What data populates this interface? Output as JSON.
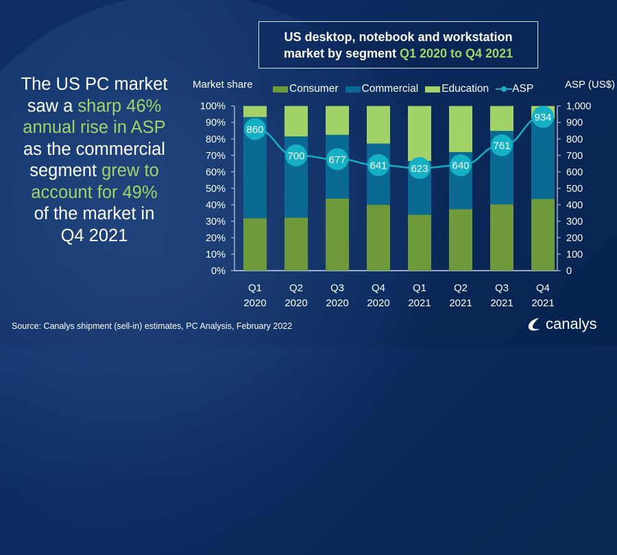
{
  "headline": {
    "parts": [
      {
        "text": "The US PC market saw a ",
        "highlight": false
      },
      {
        "text": "sharp 46% annual rise in ASP",
        "highlight": true
      },
      {
        "text": " as the commercial segment ",
        "highlight": false
      },
      {
        "text": "grew to account for 49%",
        "highlight": true
      },
      {
        "text": " of the market in Q4 2021",
        "highlight": false
      }
    ],
    "lines": [
      [
        {
          "t": "The US PC market",
          "h": false
        }
      ],
      [
        {
          "t": "saw a ",
          "h": false
        },
        {
          "t": "sharp 46%",
          "h": true
        }
      ],
      [
        {
          "t": "annual rise in ASP",
          "h": true
        }
      ],
      [
        {
          "t": "as the commercial",
          "h": false
        }
      ],
      [
        {
          "t": "segment ",
          "h": false
        },
        {
          "t": "grew to",
          "h": true
        }
      ],
      [
        {
          "t": "account for 49%",
          "h": true
        }
      ],
      [
        {
          "t": "of the market in",
          "h": false
        }
      ],
      [
        {
          "t": "Q4 2021",
          "h": false
        }
      ]
    ]
  },
  "title": {
    "line1": "US desktop, notebook and workstation",
    "line2_plain": "market by segment ",
    "line2_highlight": "Q1 2020 to Q4 2021"
  },
  "colors": {
    "highlight": "#a3d368",
    "consumer": "#6e9a3c",
    "commercial": "#0a6a93",
    "education": "#a3d368",
    "asp": "#16b0c4",
    "axis": "#c9d6e6"
  },
  "chart_data": {
    "type": "bar",
    "stacked": true,
    "title": "US desktop, notebook and workstation market by segment Q1 2020 to Q4 2021",
    "ylabel": "Market share",
    "y2label": "ASP (US$)",
    "xlabel": "",
    "ylim": [
      0,
      100
    ],
    "y2lim": [
      0,
      1000
    ],
    "yticks": [
      "0%",
      "10%",
      "20%",
      "30%",
      "40%",
      "50%",
      "60%",
      "70%",
      "80%",
      "90%",
      "100%"
    ],
    "y2ticks": [
      "0",
      "100",
      "200",
      "300",
      "400",
      "500",
      "600",
      "700",
      "800",
      "900",
      "1,000"
    ],
    "categories": [
      {
        "q": "Q1",
        "y": "2020"
      },
      {
        "q": "Q2",
        "y": "2020"
      },
      {
        "q": "Q3",
        "y": "2020"
      },
      {
        "q": "Q4",
        "y": "2020"
      },
      {
        "q": "Q1",
        "y": "2021"
      },
      {
        "q": "Q2",
        "y": "2021"
      },
      {
        "q": "Q3",
        "y": "2021"
      },
      {
        "q": "Q4",
        "y": "2021"
      }
    ],
    "series": [
      {
        "name": "Consumer",
        "type": "bar",
        "values": [
          31.8,
          32.2,
          43.8,
          40.0,
          34.0,
          37.3,
          40.3,
          43.5
        ]
      },
      {
        "name": "Commercial",
        "type": "bar",
        "values": [
          61.5,
          49.3,
          38.7,
          37.2,
          32.6,
          34.7,
          44.6,
          49.0
        ]
      },
      {
        "name": "Education",
        "type": "bar",
        "values": [
          6.7,
          18.5,
          17.5,
          22.8,
          33.4,
          28.0,
          15.1,
          7.5
        ]
      },
      {
        "name": "ASP",
        "type": "line",
        "axis": "right",
        "values": [
          860,
          700,
          677,
          641,
          623,
          640,
          761,
          934
        ]
      }
    ],
    "legend": [
      "Consumer",
      "Commercial",
      "Education",
      "ASP"
    ],
    "legend_position": "top",
    "grid": false
  },
  "source": "Source: Canalys shipment (sell-in) estimates, PC Analysis, February 2022",
  "logo": {
    "text": "canalys",
    "icon": "canalys-swoosh-icon"
  }
}
